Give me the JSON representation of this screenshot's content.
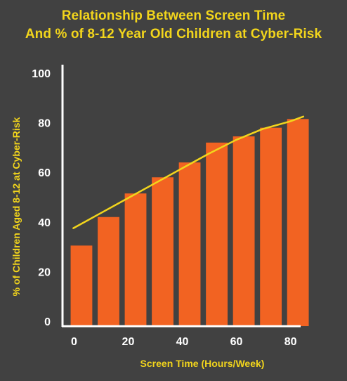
{
  "chart_data": {
    "type": "bar",
    "title_lines": [
      "Relationship Between Screen Time",
      "And % of 8-12 Year Old Children at Cyber-Risk"
    ],
    "xlabel": "Screen Time (Hours/Week)",
    "ylabel": "% of Children Aged 8-12 at Cyber-Risk",
    "xlim": [
      -4,
      84
    ],
    "ylim": [
      0,
      100
    ],
    "x_ticks": [
      0,
      20,
      40,
      60,
      80
    ],
    "x_tick_labels": [
      "0",
      "20",
      "40",
      "60",
      "80"
    ],
    "y_ticks": [
      0,
      20,
      40,
      60,
      80,
      100
    ],
    "y_tick_labels": [
      "0",
      "20",
      "40",
      "60",
      "80",
      "100"
    ],
    "bar_width": 8,
    "bars": {
      "x": [
        3,
        13,
        23,
        33,
        43,
        53,
        63,
        73,
        83
      ],
      "values": [
        30.5,
        42,
        51.5,
        58,
        64,
        72,
        74.5,
        78,
        81.5
      ]
    },
    "trendline": {
      "x": [
        0,
        10,
        20,
        30,
        40,
        50,
        60,
        70,
        80,
        85
      ],
      "y": [
        37.5,
        43.5,
        49.5,
        55.5,
        61.5,
        67.5,
        73,
        77.5,
        80.5,
        82.5
      ]
    },
    "colors": {
      "background": "#414141",
      "bar": "#f26322",
      "trendline": "#f2d51c",
      "axis": "#ffffff",
      "tick_text": "#ffffff",
      "title": "#f2d51c",
      "axis_label": "#f2d51c"
    },
    "grid": false,
    "legend": "none"
  }
}
